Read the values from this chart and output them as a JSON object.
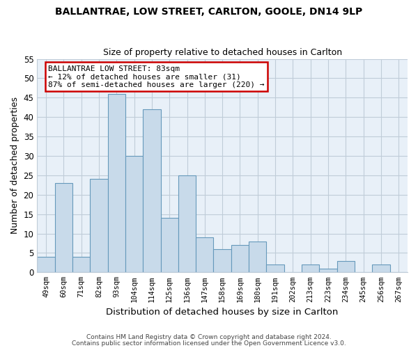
{
  "title": "BALLANTRAE, LOW STREET, CARLTON, GOOLE, DN14 9LP",
  "subtitle": "Size of property relative to detached houses in Carlton",
  "xlabel": "Distribution of detached houses by size in Carlton",
  "ylabel": "Number of detached properties",
  "categories": [
    "49sqm",
    "60sqm",
    "71sqm",
    "82sqm",
    "93sqm",
    "104sqm",
    "114sqm",
    "125sqm",
    "136sqm",
    "147sqm",
    "158sqm",
    "169sqm",
    "180sqm",
    "191sqm",
    "202sqm",
    "213sqm",
    "223sqm",
    "234sqm",
    "245sqm",
    "256sqm",
    "267sqm"
  ],
  "values": [
    4,
    23,
    4,
    24,
    46,
    30,
    42,
    14,
    25,
    9,
    6,
    7,
    8,
    2,
    0,
    2,
    1,
    3,
    0,
    2,
    0
  ],
  "bar_color": "#c8daea",
  "bar_edge_color": "#6699bb",
  "plot_bg_color": "#e8f0f8",
  "annotation_title": "BALLANTRAE LOW STREET: 83sqm",
  "annotation_line1": "← 12% of detached houses are smaller (31)",
  "annotation_line2": "87% of semi-detached houses are larger (220) →",
  "annotation_box_color": "#ffffff",
  "annotation_box_edge": "#cc0000",
  "ylim": [
    0,
    55
  ],
  "yticks": [
    0,
    5,
    10,
    15,
    20,
    25,
    30,
    35,
    40,
    45,
    50,
    55
  ],
  "footer1": "Contains HM Land Registry data © Crown copyright and database right 2024.",
  "footer2": "Contains public sector information licensed under the Open Government Licence v3.0.",
  "background_color": "#ffffff",
  "grid_color": "#c0ccd8",
  "title_fontsize": 10,
  "subtitle_fontsize": 9
}
